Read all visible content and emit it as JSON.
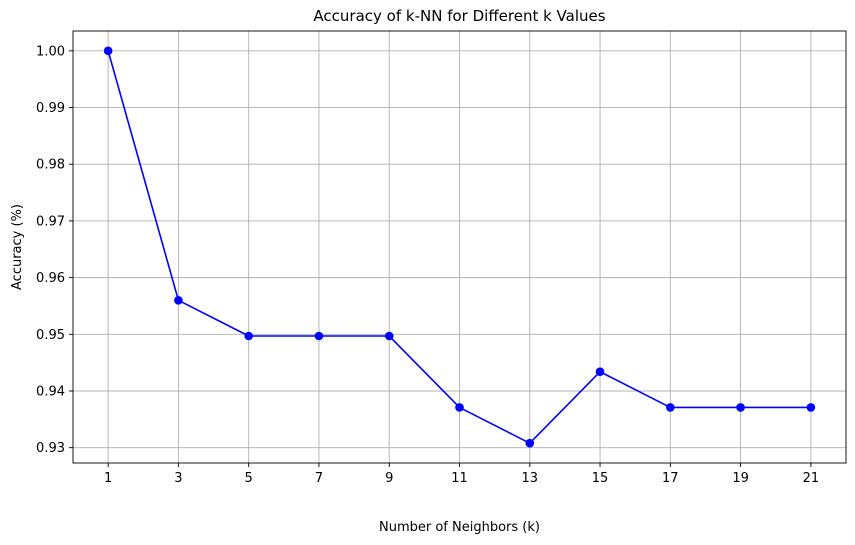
{
  "chart_data": {
    "type": "line",
    "title": "Accuracy of k-NN for Different k Values",
    "xlabel": "Number of Neighbors (k)",
    "ylabel": "Accuracy (%)",
    "x": [
      1,
      3,
      5,
      7,
      9,
      11,
      13,
      15,
      17,
      19,
      21
    ],
    "series": [
      {
        "values": [
          1.0,
          0.956,
          0.9497,
          0.9497,
          0.9497,
          0.9371,
          0.9308,
          0.9434,
          0.9371,
          0.9371,
          0.9371
        ],
        "color": "#0000ff",
        "marker": "circle"
      }
    ],
    "xticks": [
      "1",
      "3",
      "5",
      "7",
      "9",
      "11",
      "13",
      "15",
      "17",
      "19",
      "21"
    ],
    "yticks": [
      "0.93",
      "0.94",
      "0.95",
      "0.96",
      "0.97",
      "0.98",
      "0.99",
      "1.00"
    ],
    "ylim": [
      0.9273,
      1.0035
    ],
    "xlim": [
      0,
      22
    ],
    "grid": true
  }
}
